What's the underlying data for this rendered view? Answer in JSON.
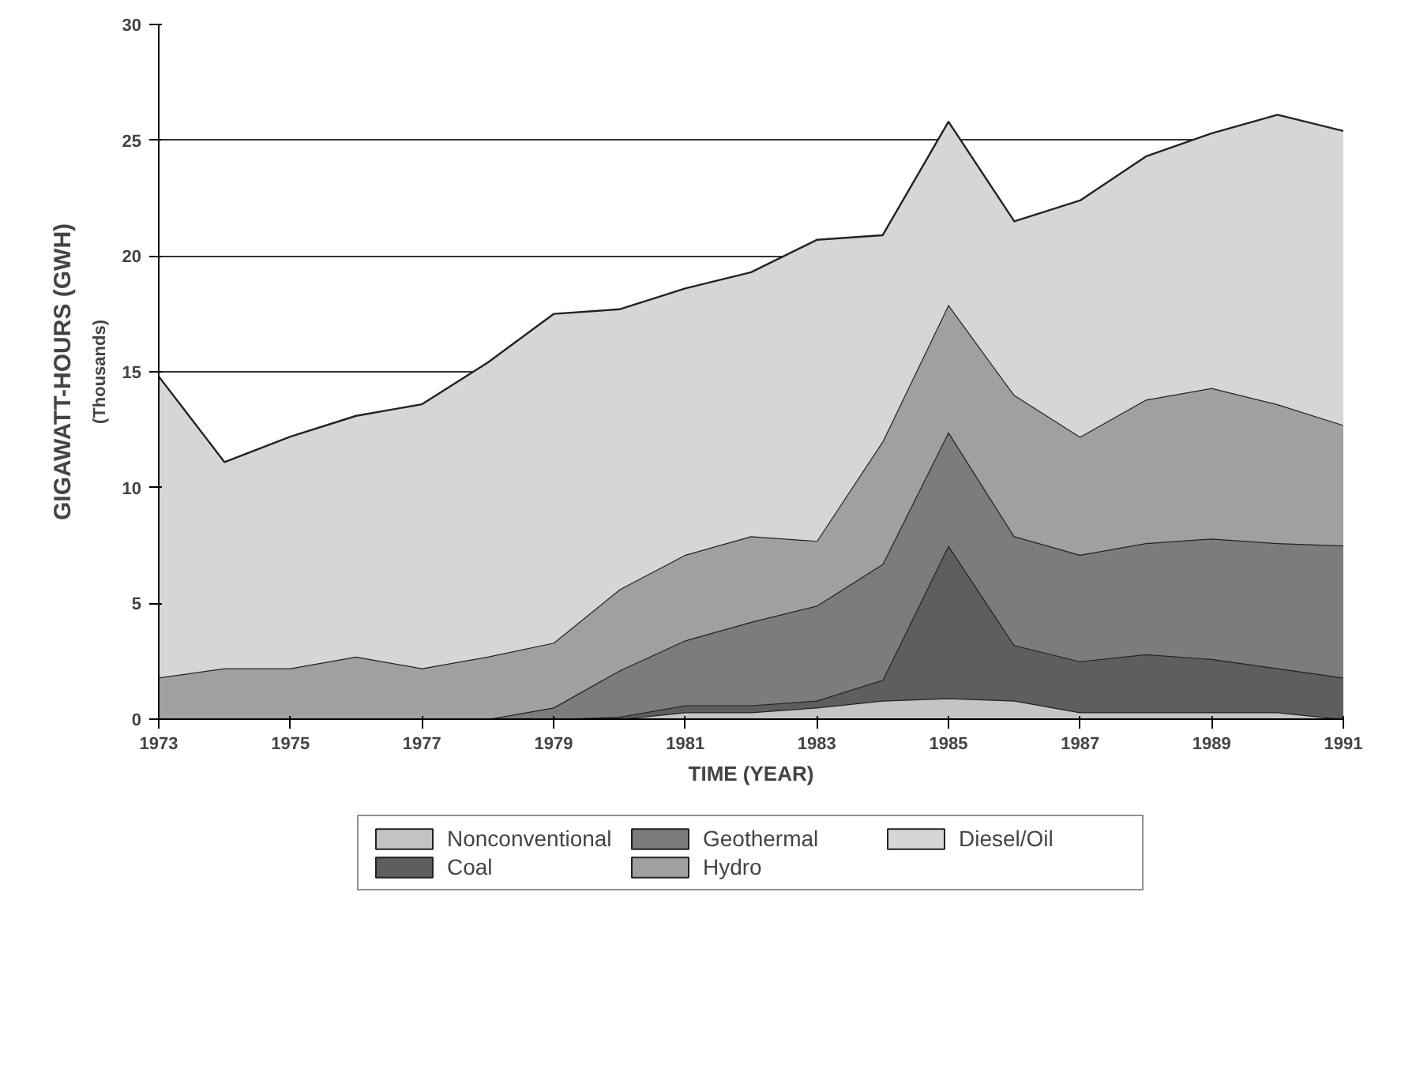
{
  "chart_data": {
    "type": "area",
    "stacked": true,
    "xlabel": "TIME (YEAR)",
    "ylabel": "GIGAWATT-HOURS (GWH)",
    "annotations": [
      "(Thousands)"
    ],
    "x": [
      1973,
      1974,
      1975,
      1976,
      1977,
      1978,
      1979,
      1980,
      1981,
      1982,
      1983,
      1984,
      1985,
      1986,
      1987,
      1988,
      1989,
      1990,
      1991
    ],
    "xlim": [
      1973,
      1991
    ],
    "xticks": [
      1973,
      1975,
      1977,
      1979,
      1981,
      1983,
      1985,
      1987,
      1989,
      1991
    ],
    "ylim": [
      0,
      30
    ],
    "yticks": [
      0,
      5,
      10,
      15,
      20,
      25,
      30
    ],
    "grid": "y",
    "legend": "bottom",
    "series": [
      {
        "name": "Nonconventional",
        "color": "#c4c4c4",
        "values": [
          0,
          0,
          0,
          0,
          0,
          0,
          0,
          0,
          0.3,
          0.3,
          0.5,
          0.8,
          0.9,
          0.8,
          0.3,
          0.3,
          0.3,
          0.3,
          0
        ]
      },
      {
        "name": "Coal",
        "color": "#5e5e5e",
        "values": [
          0,
          0,
          0,
          0,
          0,
          0,
          0,
          0.1,
          0.3,
          0.3,
          0.3,
          0.9,
          6.6,
          2.4,
          2.2,
          2.5,
          2.3,
          1.9,
          1.8
        ]
      },
      {
        "name": "Geothermal",
        "color": "#7c7c7c",
        "values": [
          0,
          0,
          0,
          0,
          0,
          0,
          0.5,
          2.0,
          2.8,
          3.6,
          4.1,
          5.0,
          4.9,
          4.7,
          4.6,
          4.8,
          5.2,
          5.4,
          5.7
        ]
      },
      {
        "name": "Hydro",
        "color": "#a0a0a0",
        "values": [
          1.8,
          2.2,
          2.2,
          2.7,
          2.2,
          2.7,
          2.8,
          3.5,
          3.7,
          3.7,
          2.8,
          5.3,
          5.5,
          6.1,
          5.1,
          6.2,
          6.5,
          6.0,
          5.2
        ]
      },
      {
        "name": "Diesel/Oil",
        "color": "#d6d6d6",
        "values": [
          13.0,
          8.9,
          10.0,
          10.4,
          11.4,
          12.7,
          14.2,
          12.1,
          11.5,
          11.4,
          13.0,
          8.9,
          7.9,
          7.5,
          10.2,
          10.5,
          11.0,
          12.5,
          12.7
        ]
      }
    ]
  }
}
